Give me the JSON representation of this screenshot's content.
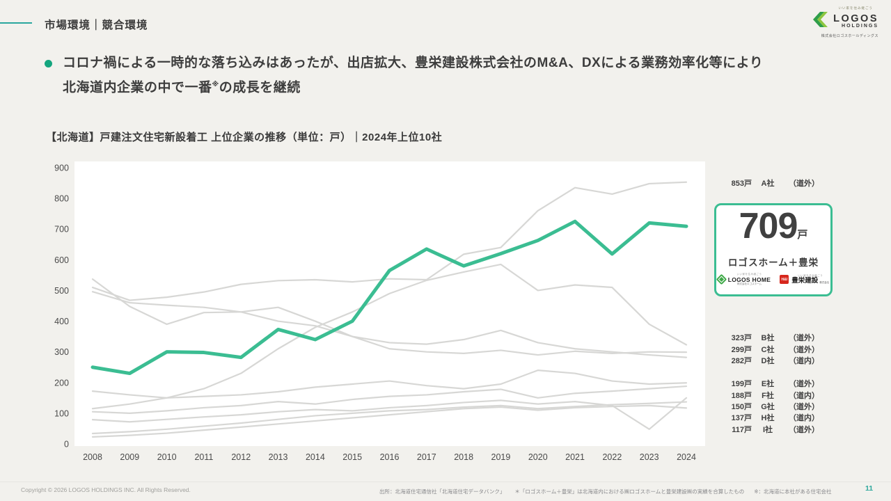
{
  "header": {
    "title": "市場環境｜競合環境"
  },
  "logo": {
    "tagline": "いい家を住み継ごう",
    "name": "LOGOS",
    "sub": "HOLDINGS",
    "company": "株式会社ロゴスホールディングス"
  },
  "bullet": {
    "line1": "コロナ禍による一時的な落ち込みはあったが、出店拡大、豊栄建設株式会社のM&A、DXによる業務効率化等により",
    "line2_pre": "北海道内企業の中で一番",
    "line2_sup": "※",
    "line2_post": "の成長を継続"
  },
  "chart": {
    "title": "【北海道】戸建注文住宅新設着工 上位企業の推移（単位：戸）｜2024年上位10社"
  },
  "chart_data": {
    "type": "line",
    "x": [
      2008,
      2009,
      2010,
      2011,
      2012,
      2013,
      2014,
      2015,
      2016,
      2017,
      2018,
      2019,
      2020,
      2021,
      2022,
      2023,
      2024
    ],
    "ylim": [
      0,
      900
    ],
    "yticks": [
      0,
      100,
      200,
      300,
      400,
      500,
      600,
      700,
      800,
      900
    ],
    "unit": "戸",
    "grid": false,
    "legend_position": "right",
    "series": [
      {
        "name": "ロゴスホーム＋豊栄",
        "highlight": true,
        "color": "#3bbd92",
        "values": [
          250,
          230,
          300,
          298,
          282,
          373,
          340,
          400,
          565,
          635,
          580,
          620,
          663,
          725,
          619,
          720,
          709
        ]
      },
      {
        "name": "A社",
        "region": "道外",
        "color": "#d7d7d5",
        "values": [
          510,
          468,
          478,
          495,
          520,
          532,
          535,
          528,
          538,
          535,
          618,
          640,
          760,
          835,
          814,
          848,
          853
        ]
      },
      {
        "name": "B社",
        "region": "道外",
        "color": "#d7d7d5",
        "values": [
          115,
          130,
          150,
          180,
          230,
          310,
          380,
          430,
          490,
          533,
          560,
          585,
          500,
          518,
          510,
          390,
          323
        ]
      },
      {
        "name": "C社",
        "region": "道外",
        "color": "#d7d7d5",
        "values": [
          496,
          460,
          452,
          445,
          430,
          400,
          385,
          350,
          310,
          300,
          295,
          305,
          290,
          302,
          295,
          300,
          299
        ]
      },
      {
        "name": "D社",
        "region": "道内",
        "color": "#d7d7d5",
        "values": [
          537,
          448,
          390,
          428,
          430,
          445,
          400,
          350,
          330,
          325,
          340,
          370,
          330,
          310,
          300,
          290,
          282
        ]
      },
      {
        "name": "E社",
        "region": "道外",
        "color": "#d7d7d5",
        "values": [
          172,
          160,
          150,
          155,
          160,
          170,
          185,
          195,
          205,
          190,
          180,
          195,
          240,
          230,
          205,
          195,
          199
        ]
      },
      {
        "name": "F社",
        "region": "道内",
        "color": "#d7d7d5",
        "values": [
          105,
          100,
          108,
          118,
          125,
          138,
          130,
          145,
          155,
          160,
          170,
          178,
          150,
          165,
          172,
          180,
          188
        ]
      },
      {
        "name": "G社",
        "region": "道外",
        "color": "#d7d7d5",
        "values": [
          79,
          72,
          80,
          88,
          95,
          105,
          112,
          108,
          118,
          125,
          135,
          142,
          130,
          138,
          125,
          48,
          150
        ]
      },
      {
        "name": "H社",
        "region": "道内",
        "color": "#d7d7d5",
        "values": [
          34,
          40,
          48,
          58,
          68,
          80,
          92,
          100,
          108,
          112,
          120,
          125,
          115,
          122,
          128,
          132,
          137
        ]
      },
      {
        "name": "I社",
        "region": "道外",
        "color": "#d7d7d5",
        "values": [
          23,
          28,
          35,
          45,
          55,
          65,
          75,
          85,
          95,
          105,
          115,
          120,
          110,
          118,
          122,
          125,
          117
        ]
      }
    ]
  },
  "companies": [
    {
      "value": "853戸",
      "name": "A社",
      "region": "（道外）",
      "group": "a"
    },
    {
      "value": "323戸",
      "name": "B社",
      "region": "（道外）",
      "group": "mid"
    },
    {
      "value": "299戸",
      "name": "C社",
      "region": "（道外）",
      "group": "mid"
    },
    {
      "value": "282戸",
      "name": "D社",
      "region": "（道内）",
      "group": "mid"
    },
    {
      "value": "199戸",
      "name": "E社",
      "region": "（道外）",
      "group": "low"
    },
    {
      "value": "188戸",
      "name": "F社",
      "region": "（道内）",
      "group": "low"
    },
    {
      "value": "150戸",
      "name": "G社",
      "region": "（道外）",
      "group": "low"
    },
    {
      "value": "137戸",
      "name": "H社",
      "region": "（道内）",
      "group": "low"
    },
    {
      "value": "117戸",
      "name": "I社",
      "region": "（道外）",
      "group": "low"
    }
  ],
  "highlight": {
    "value": "709",
    "unit": "戸",
    "label": "ロゴスホーム＋豊栄",
    "logo1": {
      "tagline": "いい家を住み継ごう",
      "name": "LOGOS HOME",
      "sub": "株式会社ロゴスホーム"
    },
    "logo2": {
      "icon": "H&I",
      "tagline": "いい家を住み継ごう",
      "name": "豊栄建設",
      "sub": "株式会社"
    }
  },
  "footer": {
    "copyright": "Copyright © 2026 LOGOS HOLDINGS INC. All Rights Reserved.",
    "source": "出所：北海道住宅通信社「北海道住宅データバンク」",
    "note_ast": "＊「ロゴスホーム＋豊栄」は北海道内における㈱ロゴスホームと豊栄建設㈱の実績を合算したもの",
    "note_kome": "※：北海道に本社がある住宅会社",
    "page": "11"
  }
}
